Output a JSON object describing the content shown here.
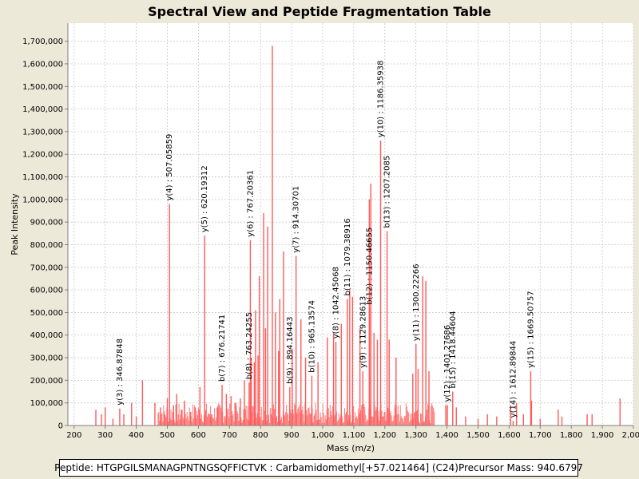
{
  "chart_data": {
    "type": "bar",
    "title": "Spectral View and Peptide Fragmentation Table",
    "xlabel": "Mass (m/z)",
    "ylabel": "Peak Intensity",
    "xlim": [
      180,
      2000
    ],
    "ylim": [
      0,
      1780000
    ],
    "x_ticks": [
      "200",
      "300",
      "400",
      "500",
      "600",
      "700",
      "800",
      "900",
      "1,000",
      "1,100",
      "1,200",
      "1,300",
      "1,400",
      "1,500",
      "1,600",
      "1,700",
      "1,800",
      "1,900",
      "2,000"
    ],
    "y_ticks": [
      "0",
      "100,000",
      "200,000",
      "300,000",
      "400,000",
      "500,000",
      "600,000",
      "700,000",
      "800,000",
      "900,000",
      "1,000,000",
      "1,100,000",
      "1,200,000",
      "1,300,000",
      "1,400,000",
      "1,500,000",
      "1,600,000",
      "1,700,000"
    ],
    "grid": true,
    "colors": {
      "peak": "#ff5a5a",
      "grid": "#c8c8c8",
      "plot_bg": "#ffffff",
      "page_bg": "#ece9d8"
    },
    "peaks": [
      {
        "mz": 346.87848,
        "intensity": 75000,
        "label": "y(3) : 346.87848"
      },
      {
        "mz": 507.05859,
        "intensity": 980000,
        "label": "y(4) : 507.05859"
      },
      {
        "mz": 620.19312,
        "intensity": 840000,
        "label": "y(5) : 620.19312"
      },
      {
        "mz": 676.21741,
        "intensity": 180000,
        "label": "b(7) : 676.21741"
      },
      {
        "mz": 763.24255,
        "intensity": 190000,
        "label": "b(8) : 763.24255"
      },
      {
        "mz": 767.20361,
        "intensity": 820000,
        "label": "y(6) : 767.20361"
      },
      {
        "mz": 894.16443,
        "intensity": 170000,
        "label": "b(9) : 894.16443"
      },
      {
        "mz": 914.30701,
        "intensity": 750000,
        "label": "y(7) : 914.30701"
      },
      {
        "mz": 965.13574,
        "intensity": 220000,
        "label": "b(10) : 965.13574"
      },
      {
        "mz": 1042.45068,
        "intensity": 370000,
        "label": "y(8) : 1042.45068"
      },
      {
        "mz": 1079.38916,
        "intensity": 560000,
        "label": "b(11) : 1079.38916"
      },
      {
        "mz": 1129.28613,
        "intensity": 240000,
        "label": "y(9) : 1129.28613"
      },
      {
        "mz": 1150.46655,
        "intensity": 520000,
        "label": "b(12) : 1150.46655"
      },
      {
        "mz": 1186.35938,
        "intensity": 1260000,
        "label": "y(10) : 1186.35938"
      },
      {
        "mz": 1207.2085,
        "intensity": 860000,
        "label": "b(13) : 1207.2085"
      },
      {
        "mz": 1300.22266,
        "intensity": 360000,
        "label": "y(11) : 1300.22266"
      },
      {
        "mz": 1401.27686,
        "intensity": 90000,
        "label": "y(12) : 1401.27686"
      },
      {
        "mz": 1418.44604,
        "intensity": 150000,
        "label": "b(15) : 1418.44604"
      },
      {
        "mz": 1612.89844,
        "intensity": 20000,
        "label": "y(14) : 1612.89844"
      },
      {
        "mz": 1669.50757,
        "intensity": 240000,
        "label": "y(15) : 1669.50757"
      },
      {
        "mz": 838,
        "intensity": 1680000,
        "label": ""
      },
      {
        "mz": 1155,
        "intensity": 1070000,
        "label": ""
      },
      {
        "mz": 1150,
        "intensity": 1000000,
        "label": ""
      },
      {
        "mz": 810,
        "intensity": 940000,
        "label": ""
      },
      {
        "mz": 823,
        "intensity": 880000,
        "label": ""
      },
      {
        "mz": 796,
        "intensity": 660000,
        "label": ""
      },
      {
        "mz": 874,
        "intensity": 770000,
        "label": ""
      },
      {
        "mz": 1322,
        "intensity": 660000,
        "label": ""
      },
      {
        "mz": 1332,
        "intensity": 640000,
        "label": ""
      },
      {
        "mz": 1087,
        "intensity": 600000,
        "label": ""
      },
      {
        "mz": 1096,
        "intensity": 570000,
        "label": ""
      },
      {
        "mz": 862,
        "intensity": 560000,
        "label": ""
      },
      {
        "mz": 784,
        "intensity": 510000,
        "label": ""
      },
      {
        "mz": 848,
        "intensity": 500000,
        "label": ""
      },
      {
        "mz": 930,
        "intensity": 470000,
        "label": ""
      },
      {
        "mz": 1060,
        "intensity": 450000,
        "label": ""
      },
      {
        "mz": 816,
        "intensity": 430000,
        "label": ""
      },
      {
        "mz": 1035,
        "intensity": 410000,
        "label": ""
      },
      {
        "mz": 1120,
        "intensity": 430000,
        "label": ""
      },
      {
        "mz": 1165,
        "intensity": 410000,
        "label": ""
      },
      {
        "mz": 1176,
        "intensity": 380000,
        "label": ""
      },
      {
        "mz": 1214,
        "intensity": 380000,
        "label": ""
      },
      {
        "mz": 1236,
        "intensity": 300000,
        "label": ""
      },
      {
        "mz": 1015,
        "intensity": 390000,
        "label": ""
      },
      {
        "mz": 858,
        "intensity": 330000,
        "label": ""
      },
      {
        "mz": 902,
        "intensity": 340000,
        "label": ""
      },
      {
        "mz": 792,
        "intensity": 310000,
        "label": ""
      },
      {
        "mz": 780,
        "intensity": 280000,
        "label": ""
      },
      {
        "mz": 945,
        "intensity": 300000,
        "label": ""
      },
      {
        "mz": 985,
        "intensity": 280000,
        "label": ""
      },
      {
        "mz": 1290,
        "intensity": 230000,
        "label": ""
      },
      {
        "mz": 1307,
        "intensity": 250000,
        "label": ""
      },
      {
        "mz": 1342,
        "intensity": 240000,
        "label": ""
      },
      {
        "mz": 1396,
        "intensity": 90000,
        "label": ""
      },
      {
        "mz": 1430,
        "intensity": 80000,
        "label": ""
      },
      {
        "mz": 1460,
        "intensity": 40000,
        "label": ""
      },
      {
        "mz": 1500,
        "intensity": 30000,
        "label": ""
      },
      {
        "mz": 1530,
        "intensity": 50000,
        "label": ""
      },
      {
        "mz": 1560,
        "intensity": 40000,
        "label": ""
      },
      {
        "mz": 1605,
        "intensity": 90000,
        "label": ""
      },
      {
        "mz": 1624,
        "intensity": 100000,
        "label": ""
      },
      {
        "mz": 1646,
        "intensity": 50000,
        "label": ""
      },
      {
        "mz": 1672,
        "intensity": 110000,
        "label": ""
      },
      {
        "mz": 1700,
        "intensity": 30000,
        "label": ""
      },
      {
        "mz": 1758,
        "intensity": 70000,
        "label": ""
      },
      {
        "mz": 1770,
        "intensity": 40000,
        "label": ""
      },
      {
        "mz": 1851,
        "intensity": 50000,
        "label": ""
      },
      {
        "mz": 1867,
        "intensity": 50000,
        "label": ""
      },
      {
        "mz": 1957,
        "intensity": 120000,
        "label": ""
      },
      {
        "mz": 270,
        "intensity": 70000,
        "label": ""
      },
      {
        "mz": 288,
        "intensity": 50000,
        "label": ""
      },
      {
        "mz": 300,
        "intensity": 80000,
        "label": ""
      },
      {
        "mz": 325,
        "intensity": 30000,
        "label": ""
      },
      {
        "mz": 360,
        "intensity": 50000,
        "label": ""
      },
      {
        "mz": 385,
        "intensity": 100000,
        "label": ""
      },
      {
        "mz": 400,
        "intensity": 40000,
        "label": ""
      },
      {
        "mz": 420,
        "intensity": 200000,
        "label": ""
      },
      {
        "mz": 460,
        "intensity": 100000,
        "label": ""
      },
      {
        "mz": 478,
        "intensity": 80000,
        "label": ""
      },
      {
        "mz": 490,
        "intensity": 50000,
        "label": ""
      },
      {
        "mz": 500,
        "intensity": 120000,
        "label": ""
      },
      {
        "mz": 520,
        "intensity": 90000,
        "label": ""
      },
      {
        "mz": 530,
        "intensity": 140000,
        "label": ""
      },
      {
        "mz": 545,
        "intensity": 70000,
        "label": ""
      },
      {
        "mz": 555,
        "intensity": 110000,
        "label": ""
      },
      {
        "mz": 575,
        "intensity": 60000,
        "label": ""
      },
      {
        "mz": 590,
        "intensity": 80000,
        "label": ""
      },
      {
        "mz": 605,
        "intensity": 170000,
        "label": ""
      },
      {
        "mz": 640,
        "intensity": 40000,
        "label": ""
      },
      {
        "mz": 662,
        "intensity": 80000,
        "label": ""
      },
      {
        "mz": 690,
        "intensity": 140000,
        "label": ""
      },
      {
        "mz": 705,
        "intensity": 130000,
        "label": ""
      },
      {
        "mz": 720,
        "intensity": 100000,
        "label": ""
      },
      {
        "mz": 735,
        "intensity": 120000,
        "label": ""
      },
      {
        "mz": 748,
        "intensity": 200000,
        "label": ""
      },
      {
        "mz": 770,
        "intensity": 300000,
        "label": ""
      }
    ]
  },
  "footer": {
    "peptide": "Peptide: HTGPGILSMANAGPNTNGSQFFICTVK : Carbamidomethyl[+57.021464] (C24)",
    "precursor": "Precursor Mass: 940.6797"
  }
}
